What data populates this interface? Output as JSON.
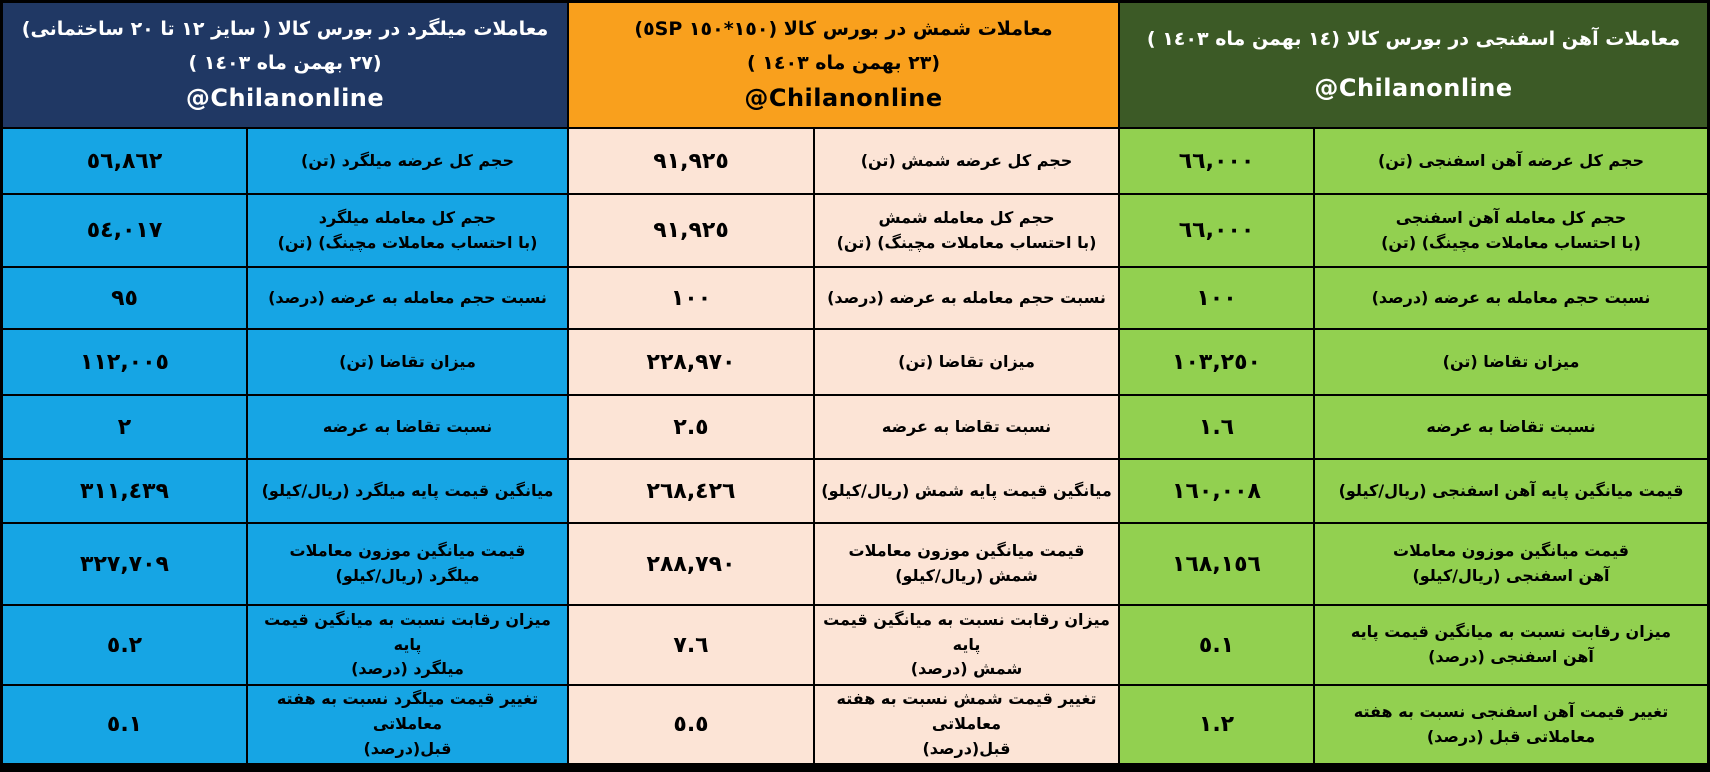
{
  "branding": {
    "handle": "@Chilanonline"
  },
  "colors": {
    "grid_border": "#000000",
    "rebar_header_bg": "#203864",
    "rebar_header_text": "#ffffff",
    "rebar_cell_bg": "#16a5e4",
    "ingot_header_bg": "#f9a01d",
    "ingot_header_text": "#000000",
    "ingot_cell_bg": "#fce4d6",
    "sponge_header_bg": "#3c5a26",
    "sponge_header_text": "#ffffff",
    "sponge_cell_bg": "#92d050"
  },
  "sections": [
    {
      "key": "rebar",
      "title": "معاملات میلگرد در بورس کالا ( سایز ١٢ تا ٢٠ ساختمانی)",
      "date_line": "(٢٧ بهمن ماه ١٤٠٣ )",
      "handle": "@Chilanonline",
      "rows": [
        {
          "value": "٥٦,٨٦٢",
          "label": "حجم کل عرضه میلگرد (تن)"
        },
        {
          "value": "٥٤,٠١٧",
          "label": "حجم کل معامله میلگرد\n(با احتساب معاملات مچینگ) (تن)"
        },
        {
          "value": "٩٥",
          "label": "نسبت حجم معامله به عرضه (درصد)"
        },
        {
          "value": "١١٢,٠٠٥",
          "label": "میزان تقاضا (تن)"
        },
        {
          "value": "٢",
          "label": "نسبت تقاضا به عرضه"
        },
        {
          "value": "٣١١,٤٣٩",
          "label": "میانگین قیمت پایه میلگرد (ریال/کیلو)"
        },
        {
          "value": "٣٢٧,٧٠٩",
          "label": "قیمت میانگین موزون معاملات\nمیلگرد (ریال/کیلو)"
        },
        {
          "value": "٥.٢",
          "label": "میزان رقابت نسبت به میانگین قیمت پایه\nمیلگرد (درصد)"
        },
        {
          "value": "٥.١",
          "label": "تغییر قیمت میلگرد نسبت به هفته معاملاتی\nقبل(درصد)"
        }
      ]
    },
    {
      "key": "ingot",
      "title": "معاملات شمش در بورس کالا (١٥٠*١٥٠ ٥SP)",
      "date_line": "(٢٣ بهمن ماه ١٤٠٣ )",
      "handle": "@Chilanonline",
      "rows": [
        {
          "value": "٩١,٩٢٥",
          "label": "حجم کل عرضه شمش (تن)"
        },
        {
          "value": "٩١,٩٢٥",
          "label": "حجم کل معامله شمش\n(با احتساب معاملات مچینگ) (تن)"
        },
        {
          "value": "١٠٠",
          "label": "نسبت حجم معامله به عرضه (درصد)"
        },
        {
          "value": "٢٢٨,٩٧٠",
          "label": "میزان تقاضا (تن)"
        },
        {
          "value": "٢.٥",
          "label": "نسبت تقاضا به عرضه"
        },
        {
          "value": "٢٦٨,٤٢٦",
          "label": "میانگین قیمت پایه شمش (ریال/کیلو)"
        },
        {
          "value": "٢٨٨,٧٩٠",
          "label": "قیمت میانگین موزون معاملات\nشمش (ریال/کیلو)"
        },
        {
          "value": "٧.٦",
          "label": "میزان رقابت نسبت به میانگین قیمت پایه\nشمش (درصد)"
        },
        {
          "value": "٥.٥",
          "label": "تغییر قیمت شمش نسبت به هفته معاملاتی\nقبل(درصد)"
        }
      ]
    },
    {
      "key": "sponge",
      "title": "معاملات آهن اسفنجی در بورس کالا (١٤ بهمن ماه  ١٤٠٣ )",
      "date_line": null,
      "handle": "@Chilanonline",
      "rows": [
        {
          "value": "٦٦,٠٠٠",
          "label": "حجم کل عرضه آهن اسفنجی (تن)"
        },
        {
          "value": "٦٦,٠٠٠",
          "label": "حجم کل معامله آهن اسفنجی\n(با احتساب معاملات مچینگ) (تن)"
        },
        {
          "value": "١٠٠",
          "label": "نسبت حجم معامله به عرضه (درصد)"
        },
        {
          "value": "١٠٣,٢٥٠",
          "label": "میزان تقاضا (تن)"
        },
        {
          "value": "١.٦",
          "label": "نسبت تقاضا به عرضه"
        },
        {
          "value": "١٦٠,٠٠٨",
          "label": "قیمت میانگین پایه آهن اسفنجی (ریال/کیلو)"
        },
        {
          "value": "١٦٨,١٥٦",
          "label": "قیمت میانگین موزون معاملات\nآهن اسفنجی (ریال/کیلو)"
        },
        {
          "value": "٥.١",
          "label": "میزان رقابت نسبت به میانگین قیمت پایه\nآهن اسفنجی (درصد)"
        },
        {
          "value": "١.٢",
          "label": "تغییر قیمت آهن اسفنجی نسبت به هفته\nمعاملاتی قبل (درصد)"
        }
      ]
    }
  ],
  "chart_data": [
    {
      "type": "table",
      "title": "معاملات میلگرد در بورس کالا ( سایز 12 تا 20 ساختمانی) - 27 بهمن ماه 1403 - @Chilanonline",
      "rows": [
        {
          "metric": "حجم کل عرضه میلگرد (تن)",
          "value": 56862
        },
        {
          "metric": "حجم کل معامله میلگرد (با احتساب معاملات مچینگ) (تن)",
          "value": 54017
        },
        {
          "metric": "نسبت حجم معامله به عرضه (درصد)",
          "value": 95
        },
        {
          "metric": "میزان تقاضا (تن)",
          "value": 112005
        },
        {
          "metric": "نسبت تقاضا به عرضه",
          "value": 2
        },
        {
          "metric": "میانگین قیمت پایه میلگرد (ریال/کیلو)",
          "value": 311439
        },
        {
          "metric": "قیمت میانگین موزون معاملات میلگرد (ریال/کیلو)",
          "value": 327709
        },
        {
          "metric": "میزان رقابت نسبت به میانگین قیمت پایه میلگرد (درصد)",
          "value": 5.2
        },
        {
          "metric": "تغییر قیمت میلگرد نسبت به هفته معاملاتی قبل (درصد)",
          "value": 5.1
        }
      ]
    },
    {
      "type": "table",
      "title": "معاملات شمش در بورس کالا (150*150 5SP) - 23 بهمن ماه 1403 - @Chilanonline",
      "rows": [
        {
          "metric": "حجم کل عرضه شمش (تن)",
          "value": 91925
        },
        {
          "metric": "حجم کل معامله شمش (با احتساب معاملات مچینگ) (تن)",
          "value": 91925
        },
        {
          "metric": "نسبت حجم معامله به عرضه (درصد)",
          "value": 100
        },
        {
          "metric": "میزان تقاضا (تن)",
          "value": 228970
        },
        {
          "metric": "نسبت تقاضا به عرضه",
          "value": 2.5
        },
        {
          "metric": "میانگین قیمت پایه شمش (ریال/کیلو)",
          "value": 268426
        },
        {
          "metric": "قیمت میانگین موزون معاملات شمش (ریال/کیلو)",
          "value": 288790
        },
        {
          "metric": "میزان رقابت نسبت به میانگین قیمت پایه شمش (درصد)",
          "value": 7.6
        },
        {
          "metric": "تغییر قیمت شمش نسبت به هفته معاملاتی قبل (درصد)",
          "value": 5.5
        }
      ]
    },
    {
      "type": "table",
      "title": "معاملات آهن اسفنجی در بورس کالا - 14 بهمن ماه 1403 - @Chilanonline",
      "rows": [
        {
          "metric": "حجم کل عرضه آهن اسفنجی (تن)",
          "value": 66000
        },
        {
          "metric": "حجم کل معامله آهن اسفنجی (با احتساب معاملات مچینگ) (تن)",
          "value": 66000
        },
        {
          "metric": "نسبت حجم معامله به عرضه (درصد)",
          "value": 100
        },
        {
          "metric": "میزان تقاضا (تن)",
          "value": 103250
        },
        {
          "metric": "نسبت تقاضا به عرضه",
          "value": 1.6
        },
        {
          "metric": "قیمت میانگین پایه آهن اسفنجی (ریال/کیلو)",
          "value": 160008
        },
        {
          "metric": "قیمت میانگین موزون معاملات آهن اسفنجی (ریال/کیلو)",
          "value": 168156
        },
        {
          "metric": "میزان رقابت نسبت به میانگین قیمت پایه آهن اسفنجی (درصد)",
          "value": 5.1
        },
        {
          "metric": "تغییر قیمت آهن اسفنجی نسبت به هفته معاملاتی قبل (درصد)",
          "value": 1.2
        }
      ]
    }
  ]
}
